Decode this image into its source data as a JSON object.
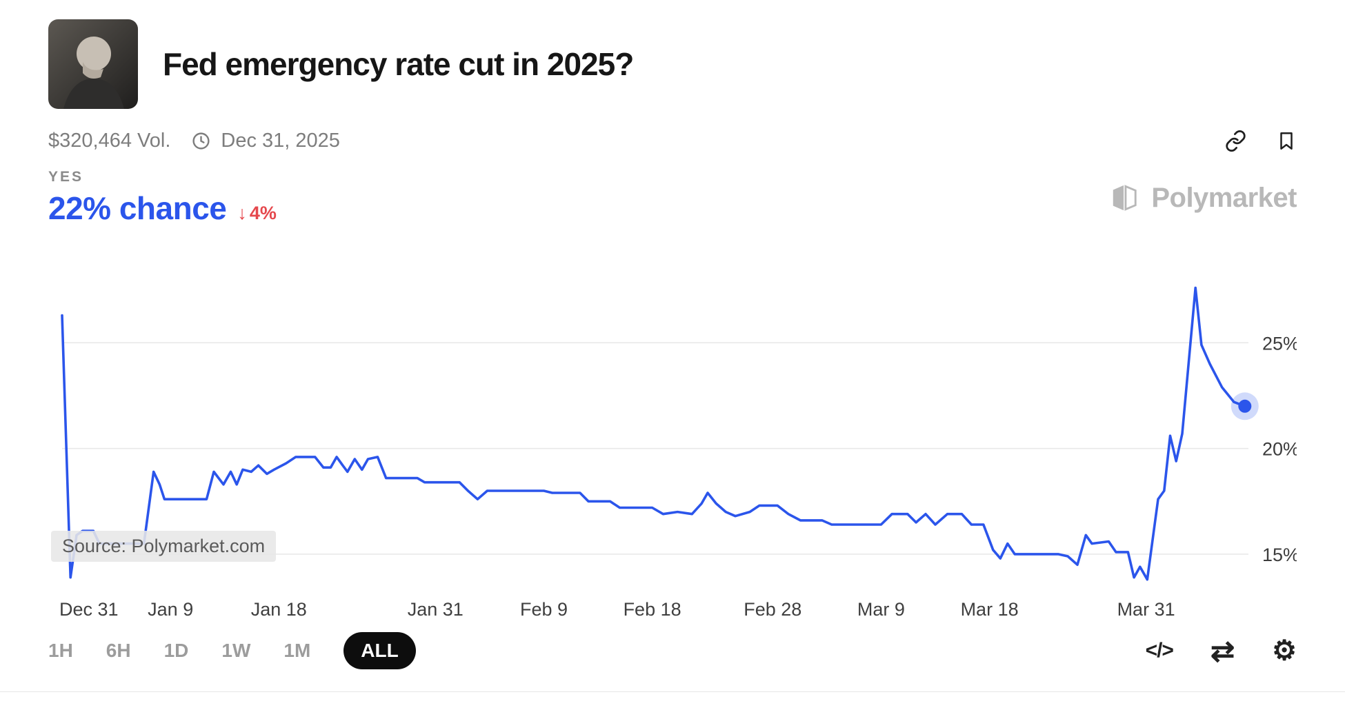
{
  "header": {
    "title": "Fed emergency rate cut in 2025?",
    "volume": "$320,464 Vol.",
    "end_date": "Dec 31, 2025",
    "outcome_label": "YES",
    "chance": "22% chance",
    "change": "4%",
    "brand": "Polymarket"
  },
  "colors": {
    "accent_blue": "#2b55eb",
    "change_red": "#e5484d",
    "grid_gray": "#e7e7e7",
    "watermark_gray": "#b8b8b8",
    "active_pill_bg": "#0d0d0d"
  },
  "icons": {
    "down_arrow": "↓",
    "embed": "</>",
    "swap": "⇄",
    "gear": "⚙"
  },
  "chart_data": {
    "type": "line",
    "title": "Fed emergency rate cut in 2025? — YES chance over time",
    "legend": "none",
    "grid": true,
    "line_color": "#2b55eb",
    "grid_color": "#e7e7e7",
    "xlim": [
      0,
      98.5
    ],
    "ylim": [
      13.4,
      27.75
    ],
    "y_ticks": [
      15,
      20,
      25
    ],
    "y_tick_suffix": "%",
    "x_ticks": [
      {
        "d": 0,
        "label": "Dec 31"
      },
      {
        "d": 9,
        "label": "Jan 9"
      },
      {
        "d": 18,
        "label": "Jan 18"
      },
      {
        "d": 31,
        "label": "Jan 31"
      },
      {
        "d": 40,
        "label": "Feb 9"
      },
      {
        "d": 49,
        "label": "Feb 18"
      },
      {
        "d": 59,
        "label": "Feb 28"
      },
      {
        "d": 68,
        "label": "Mar 9"
      },
      {
        "d": 77,
        "label": "Mar 18"
      },
      {
        "d": 90,
        "label": "Mar 31"
      }
    ],
    "endpoint_value": 22,
    "source_note": "Source: Polymarket.com",
    "series": [
      {
        "name": "YES chance (%)",
        "points": [
          [
            0,
            26.3
          ],
          [
            0.7,
            13.9
          ],
          [
            1.2,
            15.9
          ],
          [
            1.7,
            16.1
          ],
          [
            2.6,
            16.1
          ],
          [
            3.1,
            15.5
          ],
          [
            6.8,
            15.5
          ],
          [
            7.6,
            18.9
          ],
          [
            8.1,
            18.3
          ],
          [
            8.5,
            17.6
          ],
          [
            12.0,
            17.6
          ],
          [
            12.6,
            18.9
          ],
          [
            13.0,
            18.6
          ],
          [
            13.4,
            18.3
          ],
          [
            14.0,
            18.9
          ],
          [
            14.5,
            18.3
          ],
          [
            15.0,
            19.0
          ],
          [
            15.7,
            18.9
          ],
          [
            16.3,
            19.2
          ],
          [
            17.0,
            18.8
          ],
          [
            17.6,
            19.0
          ],
          [
            18.6,
            19.3
          ],
          [
            19.4,
            19.6
          ],
          [
            21.0,
            19.6
          ],
          [
            21.7,
            19.1
          ],
          [
            22.3,
            19.1
          ],
          [
            22.8,
            19.6
          ],
          [
            23.3,
            19.2
          ],
          [
            23.7,
            18.9
          ],
          [
            24.3,
            19.5
          ],
          [
            24.9,
            19.0
          ],
          [
            25.4,
            19.5
          ],
          [
            26.2,
            19.6
          ],
          [
            26.9,
            18.6
          ],
          [
            29.5,
            18.6
          ],
          [
            30.1,
            18.4
          ],
          [
            33.0,
            18.4
          ],
          [
            33.7,
            18.0
          ],
          [
            34.5,
            17.6
          ],
          [
            35.3,
            18.0
          ],
          [
            40.0,
            18.0
          ],
          [
            40.7,
            17.9
          ],
          [
            43.0,
            17.9
          ],
          [
            43.7,
            17.5
          ],
          [
            45.5,
            17.5
          ],
          [
            46.3,
            17.2
          ],
          [
            49.0,
            17.2
          ],
          [
            49.9,
            16.9
          ],
          [
            51.1,
            17.0
          ],
          [
            52.3,
            16.9
          ],
          [
            53.1,
            17.4
          ],
          [
            53.6,
            17.9
          ],
          [
            54.3,
            17.4
          ],
          [
            55.1,
            17.0
          ],
          [
            55.9,
            16.8
          ],
          [
            57.1,
            17.0
          ],
          [
            57.9,
            17.3
          ],
          [
            59.4,
            17.3
          ],
          [
            60.3,
            16.9
          ],
          [
            61.3,
            16.6
          ],
          [
            63.1,
            16.6
          ],
          [
            63.9,
            16.4
          ],
          [
            68.0,
            16.4
          ],
          [
            68.9,
            16.9
          ],
          [
            70.2,
            16.9
          ],
          [
            70.9,
            16.5
          ],
          [
            71.7,
            16.9
          ],
          [
            72.5,
            16.4
          ],
          [
            73.5,
            16.9
          ],
          [
            74.7,
            16.9
          ],
          [
            75.5,
            16.4
          ],
          [
            76.5,
            16.4
          ],
          [
            77.3,
            15.2
          ],
          [
            77.9,
            14.8
          ],
          [
            78.5,
            15.5
          ],
          [
            79.1,
            15.0
          ],
          [
            82.7,
            15.0
          ],
          [
            83.5,
            14.9
          ],
          [
            84.3,
            14.5
          ],
          [
            85.0,
            15.9
          ],
          [
            85.5,
            15.5
          ],
          [
            86.9,
            15.6
          ],
          [
            87.5,
            15.1
          ],
          [
            88.5,
            15.1
          ],
          [
            89.0,
            13.9
          ],
          [
            89.5,
            14.4
          ],
          [
            90.1,
            13.8
          ],
          [
            91.0,
            17.6
          ],
          [
            91.5,
            18.0
          ],
          [
            92.0,
            20.6
          ],
          [
            92.5,
            19.4
          ],
          [
            93.0,
            20.7
          ],
          [
            94.1,
            27.6
          ],
          [
            94.6,
            24.9
          ],
          [
            95.3,
            24.0
          ],
          [
            96.3,
            22.9
          ],
          [
            97.3,
            22.2
          ],
          [
            98.2,
            22.0
          ]
        ]
      }
    ]
  },
  "footer": {
    "ranges": [
      "1H",
      "6H",
      "1D",
      "1W",
      "1M",
      "ALL"
    ],
    "active_range": "ALL"
  }
}
